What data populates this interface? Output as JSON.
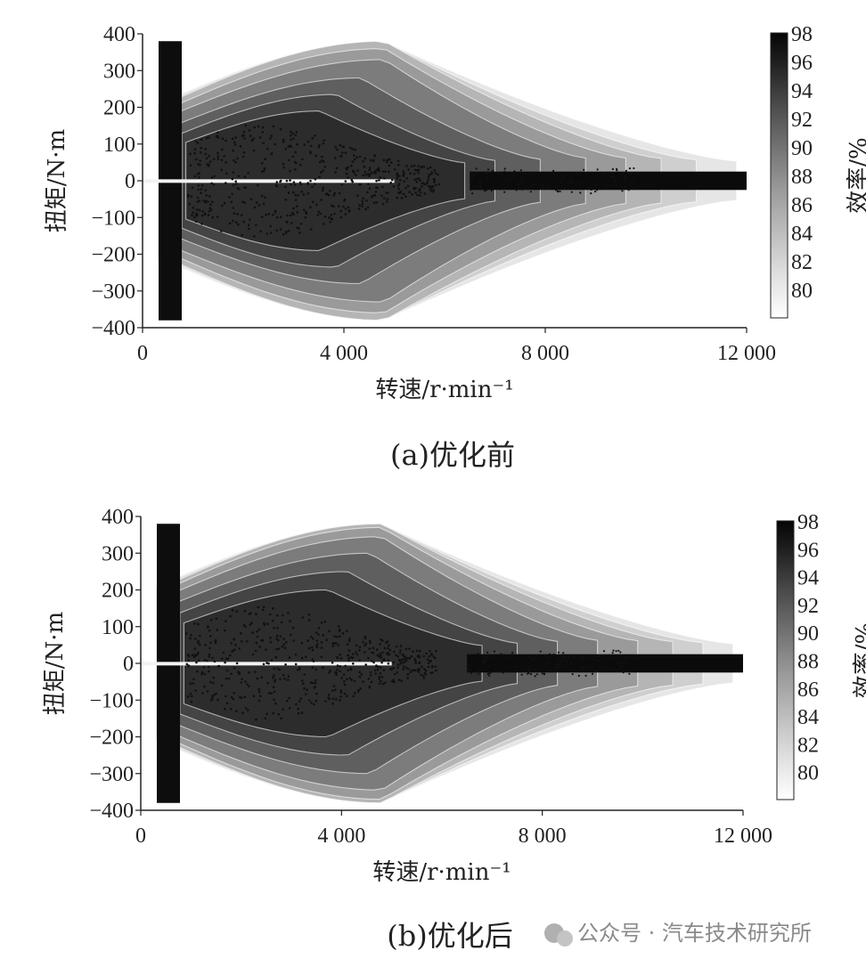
{
  "chart_data": [
    {
      "type": "heatmap",
      "caption": "(a)优化前",
      "xlabel": "转速/r·min⁻¹",
      "ylabel": "扭矩/N·m",
      "colorbar_label": "效率/%",
      "xlim": [
        0,
        12000
      ],
      "ylim": [
        -400,
        400
      ],
      "xticks": [
        "0",
        "4 000",
        "8 000",
        "12 000"
      ],
      "yticks": [
        "400",
        "300",
        "200",
        "100",
        "0",
        "−100",
        "−200",
        "−300",
        "−400"
      ],
      "colorbar_ticks": [
        "98",
        "96",
        "94",
        "92",
        "90",
        "88",
        "86",
        "84",
        "82",
        "80"
      ],
      "colorbar_range": [
        78,
        98
      ],
      "contour_levels": [
        {
          "efficiency": 80,
          "peak_torque": 380,
          "speed_extent": 11800,
          "color": "#e6e6e6"
        },
        {
          "efficiency": 82,
          "peak_torque": 380,
          "speed_extent": 11000,
          "color": "#cfcfcf"
        },
        {
          "efficiency": 84,
          "peak_torque": 380,
          "speed_extent": 10300,
          "color": "#b5b5b5"
        },
        {
          "efficiency": 86,
          "peak_torque": 360,
          "speed_extent": 9600,
          "color": "#9a9a9a"
        },
        {
          "efficiency": 88,
          "peak_torque": 330,
          "speed_extent": 8800,
          "color": "#7c7c7c"
        },
        {
          "efficiency": 90,
          "peak_torque": 280,
          "speed_extent": 7900,
          "color": "#5f5f5f"
        },
        {
          "efficiency": 92,
          "peak_torque": 235,
          "speed_extent": 7000,
          "color": "#444444"
        },
        {
          "efficiency": 94,
          "peak_torque": 190,
          "speed_extent": 6400,
          "color": "#2c2c2c"
        }
      ]
    },
    {
      "type": "heatmap",
      "caption": "(b)优化后",
      "xlabel": "转速/r·min⁻¹",
      "ylabel": "扭矩/N·m",
      "colorbar_label": "效率/%",
      "xlim": [
        0,
        12000
      ],
      "ylim": [
        -400,
        400
      ],
      "xticks": [
        "0",
        "4 000",
        "8 000",
        "12 000"
      ],
      "yticks": [
        "400",
        "300",
        "200",
        "100",
        "0",
        "−100",
        "−200",
        "−300",
        "−400"
      ],
      "colorbar_ticks": [
        "98",
        "96",
        "94",
        "92",
        "90",
        "88",
        "86",
        "84",
        "82",
        "80"
      ],
      "colorbar_range": [
        78,
        98
      ],
      "contour_levels": [
        {
          "efficiency": 80,
          "peak_torque": 380,
          "speed_extent": 11800,
          "color": "#e6e6e6"
        },
        {
          "efficiency": 82,
          "peak_torque": 380,
          "speed_extent": 11200,
          "color": "#cfcfcf"
        },
        {
          "efficiency": 84,
          "peak_torque": 380,
          "speed_extent": 10600,
          "color": "#b5b5b5"
        },
        {
          "efficiency": 86,
          "peak_torque": 370,
          "speed_extent": 9900,
          "color": "#9a9a9a"
        },
        {
          "efficiency": 88,
          "peak_torque": 345,
          "speed_extent": 9100,
          "color": "#7c7c7c"
        },
        {
          "efficiency": 90,
          "peak_torque": 300,
          "speed_extent": 8300,
          "color": "#5f5f5f"
        },
        {
          "efficiency": 92,
          "peak_torque": 250,
          "speed_extent": 7500,
          "color": "#444444"
        },
        {
          "efficiency": 94,
          "peak_torque": 200,
          "speed_extent": 6800,
          "color": "#2c2c2c"
        }
      ]
    }
  ],
  "watermark": "公众号 · 汽车技术研究所"
}
